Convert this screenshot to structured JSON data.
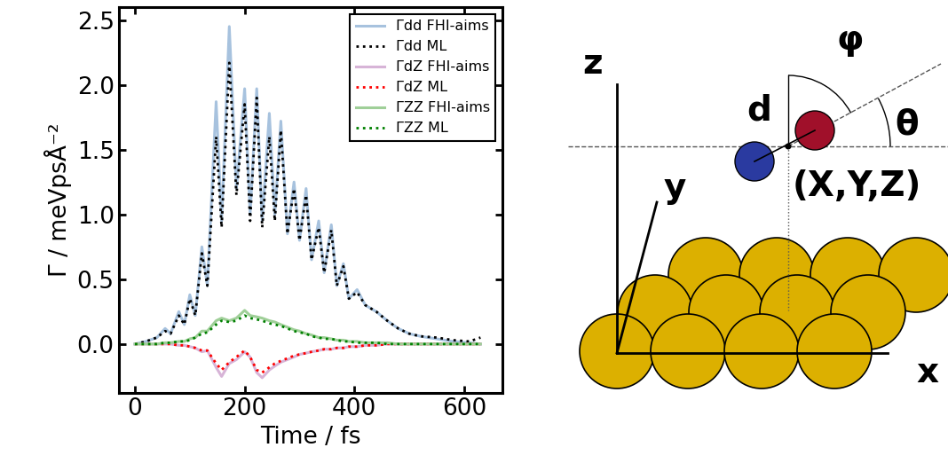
{
  "chart_data": {
    "type": "line",
    "x_label": "Time / fs",
    "y_label": "Γ / meVpsÅ⁻²",
    "x": [
      0,
      20,
      40,
      55,
      65,
      80,
      90,
      100,
      110,
      122,
      132,
      148,
      158,
      172,
      185,
      200,
      210,
      222,
      232,
      245,
      255,
      266,
      278,
      290,
      300,
      312,
      322,
      335,
      345,
      358,
      368,
      380,
      390,
      405,
      420,
      440,
      460,
      480,
      500,
      520,
      550,
      580,
      610,
      630
    ],
    "series": [
      {
        "name": "Γdd FHI-aims",
        "color": "#a7c2de",
        "line_style": "solid",
        "values": [
          0.0,
          0.02,
          0.05,
          0.12,
          0.08,
          0.25,
          0.15,
          0.38,
          0.22,
          0.75,
          0.45,
          1.87,
          0.95,
          2.45,
          1.2,
          1.97,
          1.0,
          1.97,
          0.95,
          1.78,
          1.0,
          1.72,
          0.85,
          1.25,
          0.8,
          1.2,
          0.65,
          0.95,
          0.55,
          0.92,
          0.45,
          0.62,
          0.35,
          0.42,
          0.3,
          0.25,
          0.18,
          0.12,
          0.08,
          0.06,
          0.04,
          0.02,
          0.01,
          0.0
        ]
      },
      {
        "name": "Γdd ML",
        "color": "#000000",
        "line_style": "dotted",
        "values": [
          0.0,
          0.02,
          0.05,
          0.1,
          0.08,
          0.22,
          0.15,
          0.35,
          0.22,
          0.7,
          0.45,
          1.6,
          0.9,
          2.17,
          1.15,
          1.85,
          0.95,
          1.9,
          0.9,
          1.6,
          0.95,
          1.65,
          0.85,
          1.2,
          0.8,
          1.15,
          0.65,
          0.9,
          0.55,
          0.88,
          0.45,
          0.6,
          0.35,
          0.4,
          0.3,
          0.25,
          0.18,
          0.12,
          0.08,
          0.06,
          0.05,
          0.03,
          0.02,
          0.05
        ]
      },
      {
        "name": "ΓdZ FHI-aims",
        "color": "#d7b4d7",
        "line_style": "solid",
        "values": [
          0,
          0,
          0,
          0,
          0,
          -0.01,
          -0.01,
          -0.02,
          -0.03,
          -0.06,
          -0.05,
          -0.18,
          -0.25,
          -0.15,
          -0.12,
          -0.06,
          -0.1,
          -0.22,
          -0.26,
          -0.2,
          -0.17,
          -0.14,
          -0.12,
          -0.1,
          -0.08,
          -0.07,
          -0.06,
          -0.05,
          -0.04,
          -0.04,
          -0.03,
          -0.03,
          -0.02,
          -0.02,
          -0.01,
          -0.01,
          0,
          0,
          0,
          0,
          0,
          0,
          0,
          0
        ]
      },
      {
        "name": "ΓdZ ML",
        "color": "#ff0000",
        "line_style": "dotted",
        "values": [
          0,
          0,
          0,
          0,
          0,
          -0.01,
          -0.01,
          -0.02,
          -0.03,
          -0.05,
          -0.05,
          -0.15,
          -0.2,
          -0.14,
          -0.1,
          -0.05,
          -0.1,
          -0.2,
          -0.22,
          -0.18,
          -0.15,
          -0.13,
          -0.11,
          -0.09,
          -0.08,
          -0.07,
          -0.06,
          -0.05,
          -0.04,
          -0.04,
          -0.03,
          -0.03,
          -0.02,
          -0.02,
          -0.01,
          -0.01,
          0,
          0,
          0,
          0,
          0,
          0,
          0,
          0
        ]
      },
      {
        "name": "ΓZZ FHI-aims",
        "color": "#9fcf98",
        "line_style": "solid",
        "values": [
          0,
          0,
          0,
          0.01,
          0.01,
          0.02,
          0.02,
          0.04,
          0.05,
          0.1,
          0.1,
          0.18,
          0.2,
          0.18,
          0.2,
          0.26,
          0.22,
          0.21,
          0.2,
          0.18,
          0.17,
          0.15,
          0.13,
          0.11,
          0.1,
          0.08,
          0.07,
          0.05,
          0.05,
          0.04,
          0.03,
          0.03,
          0.02,
          0.02,
          0.01,
          0.01,
          0.01,
          0,
          0,
          0,
          0,
          0,
          0,
          0
        ]
      },
      {
        "name": "ΓZZ ML",
        "color": "#008000",
        "line_style": "dotted",
        "values": [
          0,
          0,
          0,
          0.01,
          0.01,
          0.02,
          0.02,
          0.03,
          0.05,
          0.08,
          0.09,
          0.15,
          0.18,
          0.17,
          0.18,
          0.22,
          0.2,
          0.19,
          0.18,
          0.16,
          0.15,
          0.14,
          0.12,
          0.1,
          0.09,
          0.08,
          0.06,
          0.05,
          0.04,
          0.04,
          0.03,
          0.02,
          0.02,
          0.01,
          0.01,
          0.01,
          0,
          0,
          0,
          0,
          0,
          0,
          0,
          0
        ]
      }
    ],
    "xlim": [
      -30,
      670
    ],
    "ylim": [
      -0.38,
      2.6
    ],
    "xticks": [
      0,
      200,
      400,
      600
    ],
    "yticks": [
      {
        "value": 0,
        "label": "0.0"
      },
      0.5,
      {
        "value": 1,
        "label": "1.0"
      },
      1.5,
      {
        "value": 2,
        "label": "2.0"
      },
      2.5
    ],
    "legend": "upper right",
    "grid": false
  },
  "diagram": {
    "axis_labels": [
      "x",
      "y",
      "z"
    ],
    "bond_length": "d",
    "angles": [
      "φ",
      "θ"
    ],
    "center": "(X,Y,Z)"
  }
}
